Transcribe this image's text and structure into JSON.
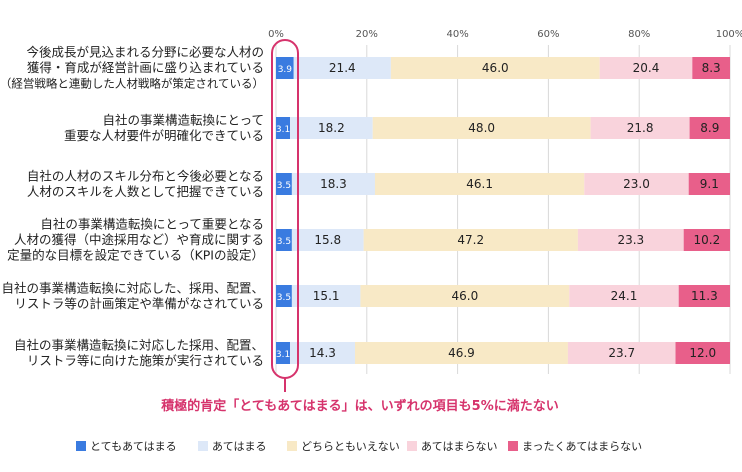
{
  "chart_data": {
    "type": "bar",
    "orientation": "horizontal-stacked-percent",
    "categories": [
      [
        "今後成長が見込まれる分野に必要な人材の",
        "獲得・育成が経営計画に盛り込まれている",
        "（経営戦略と連動した人材戦略が策定されている）"
      ],
      [
        "自社の事業構造転換にとって",
        "重要な人材要件が明確化できている"
      ],
      [
        "自社の人材のスキル分布と今後必要となる",
        "人材のスキルを人数として把握できている"
      ],
      [
        "自社の事業構造転換にとって重要となる",
        "人材の獲得（中途採用など）や育成に関する",
        "定量的な目標を設定できている（KPIの設定）"
      ],
      [
        "自社の事業構造転換に対応した、採用、配置、",
        "リストラ等の計画策定や準備がなされている"
      ],
      [
        "自社の事業構造転換に対応した採用、配置、",
        "リストラ等に向けた施策が実行されている"
      ]
    ],
    "series": [
      {
        "name": "とてもあてはまる",
        "color": "#3a7be0",
        "values": [
          3.9,
          3.1,
          3.5,
          3.5,
          3.5,
          3.1
        ]
      },
      {
        "name": "あてはまる",
        "color": "#dde8f8",
        "values": [
          21.4,
          18.2,
          18.3,
          15.8,
          15.1,
          14.3
        ]
      },
      {
        "name": "どちらともいえない",
        "color": "#f8e9c6",
        "values": [
          46.0,
          48.0,
          46.1,
          47.2,
          46.0,
          46.9
        ]
      },
      {
        "name": "あてはまらない",
        "color": "#f9d3dc",
        "values": [
          20.4,
          21.8,
          23.0,
          23.3,
          24.1,
          23.7
        ]
      },
      {
        "name": "まったくあてはまらない",
        "color": "#e85f8a",
        "values": [
          8.3,
          8.9,
          9.1,
          10.2,
          11.3,
          12.0
        ]
      }
    ],
    "x_ticks": [
      "0%",
      "20%",
      "40%",
      "60%",
      "80%",
      "100%"
    ],
    "xlim": [
      0,
      100
    ],
    "grid": true,
    "legend_position": "bottom",
    "annotation": "積極的肯定「とてもあてはまる」は、いずれの項目も5%に満たない",
    "highlight_color": "#d6336c"
  }
}
